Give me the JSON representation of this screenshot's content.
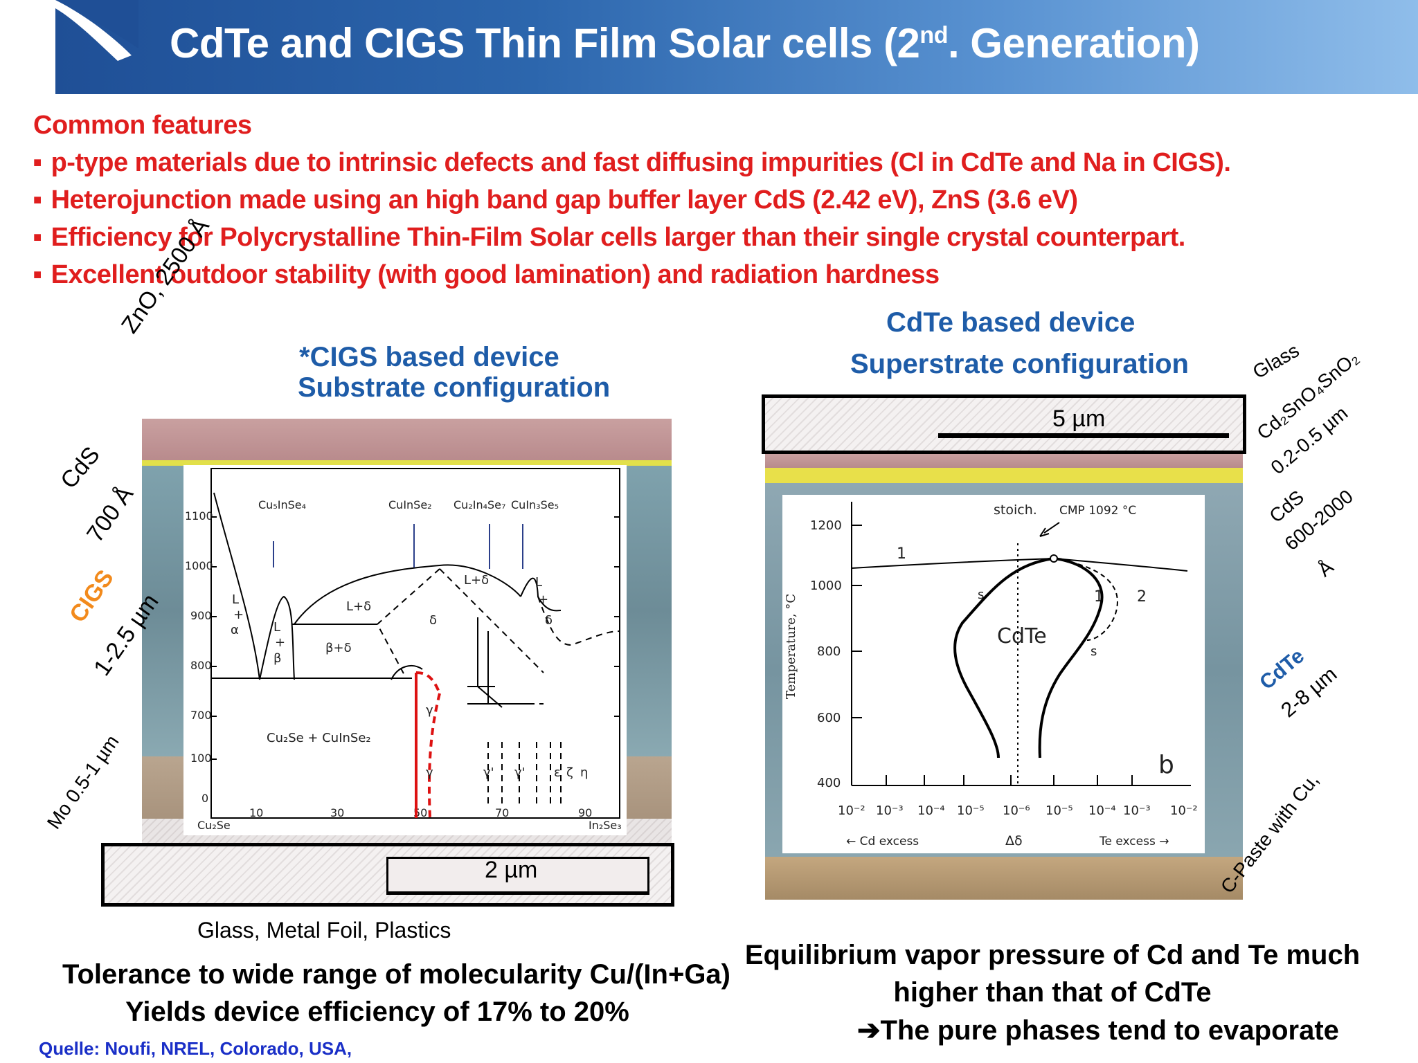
{
  "title": {
    "main": "CdTe and CIGS Thin Film Solar cells (2",
    "sup": "nd",
    "tail": ". Generation)"
  },
  "common": {
    "heading": "Common features",
    "bullets": [
      "p-type materials due to intrinsic defects and fast diffusing impurities (Cl in CdTe and Na in CIGS).",
      "Heterojunction made using an high band gap buffer layer CdS (2.42 eV), ZnS (3.6 eV)",
      "Efficiency for Polycrystalline Thin-Film Solar cells larger than their single crystal counterpart.",
      "Excellent outdoor stability (with good lamination) and radiation hardness"
    ]
  },
  "cigs": {
    "heading1": "*CIGS based device",
    "heading2": "Substrate configuration",
    "layers": {
      "zno": "ZnO, 2500 Å",
      "cds": "CdS",
      "cds_thick": "700 Å",
      "cigs": "CIGS",
      "cigs_thick": "1-2.5 µm",
      "mo": "Mo 0.5-1 µm"
    },
    "substrate": "Glass, Metal Foil, Plastics",
    "scale": "2 µm",
    "caption1": "Tolerance to wide range of molecularity Cu/(In+Ga)",
    "caption2": "Yields device efficiency of 17% to 20%",
    "source": "Quelle: Noufi, NREL, Colorado, USA,",
    "diagram": {
      "y_ticks": [
        "1100",
        "1000",
        "900",
        "800",
        "700",
        "100",
        "0"
      ],
      "x_ticks": [
        "10",
        "30",
        "50",
        "70",
        "90"
      ],
      "x_left": "Cu₂Se",
      "x_right": "In₂Se₃",
      "phases": [
        "Cu₅InSe₄",
        "CuInSe₂",
        "Cu₂In₄Se₇",
        "CuIn₃Se₅"
      ],
      "regions": [
        "L",
        "+",
        "α",
        "L",
        "+",
        "β",
        "β+δ",
        "L+δ",
        "δ",
        "L+δ",
        "L",
        "+",
        "δ",
        "γ",
        "γ",
        "γ'",
        "γ'",
        "ε",
        "ζ",
        "η",
        "Cu₂Se + CuInSe₂"
      ]
    }
  },
  "cdte": {
    "heading1": "CdTe based device",
    "heading2": "Superstrate configuration",
    "scale": "5 µm",
    "layers": {
      "glass": "Glass",
      "tco": "Cd₂SnO₄SnO₂",
      "tco_thick": "0.2-0.5 µm",
      "cds": "CdS",
      "cds_thick": "600-2000",
      "cds_unit": "Å",
      "cdte": "CdTe",
      "cdte_thick": "2-8 µm",
      "contact": "C-Paste with Cu,"
    },
    "caption1": "Equilibrium vapor pressure of Cd and Te much",
    "caption2": "higher than  that of CdTe",
    "caption3": "The pure phases tend to evaporate",
    "arrow": "➔",
    "diagram": {
      "ylabel": "Temperature, °C",
      "y_ticks": [
        "1200",
        "1000",
        "800",
        "600",
        "400"
      ],
      "x_ticks": [
        "10⁻²",
        "10⁻³",
        "10⁻⁴",
        "10⁻⁵",
        "10⁻⁶",
        "10⁻⁵",
        "10⁻⁴",
        "10⁻³",
        "10⁻²"
      ],
      "x_left": "← Cd excess",
      "x_mid": "Δδ",
      "x_right": "Te excess →",
      "stoich": "stoich.",
      "cmp": "CMP 1092 °C",
      "labels": [
        "1",
        "1",
        "2",
        "s",
        "s",
        "CdTe",
        "b"
      ]
    }
  }
}
